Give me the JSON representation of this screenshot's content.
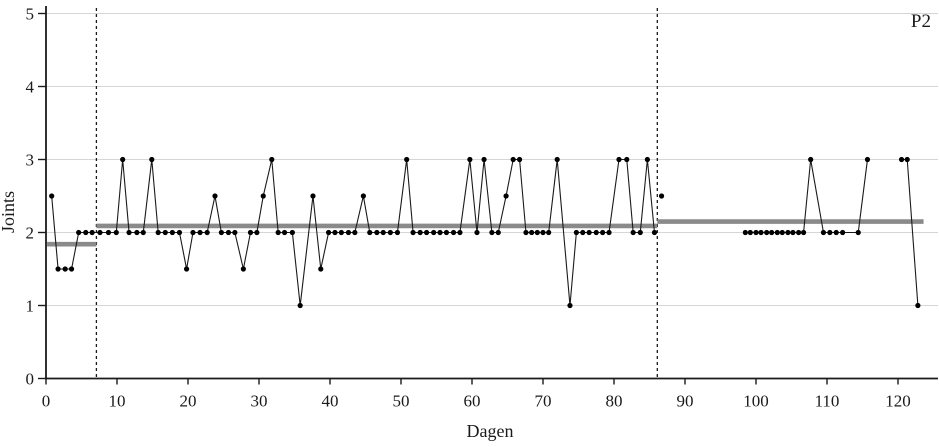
{
  "chart_data": {
    "type": "line",
    "annotation": "P2",
    "xlabel": "Dagen",
    "ylabel": "Joints",
    "xlim": [
      0,
      125.7
    ],
    "ylim": [
      0,
      5
    ],
    "xticks": [
      0,
      10,
      20,
      30,
      40,
      50,
      60,
      70,
      80,
      90,
      100,
      110,
      120
    ],
    "yticks": [
      0,
      1,
      2,
      3,
      4,
      5
    ],
    "grid": "horizontal",
    "phase_lines_x": [
      7.1,
      86.1
    ],
    "mean_segments": [
      {
        "x1": 0.15,
        "x2": 7.1,
        "value": 1.84
      },
      {
        "x1": 7.1,
        "x2": 86.1,
        "value": 2.09
      },
      {
        "x1": 86.1,
        "x2": 123.6,
        "value": 2.15
      }
    ],
    "series": [
      {
        "points": [
          [
            0.8,
            2.5
          ],
          [
            1.7,
            1.5
          ],
          [
            2.7,
            1.5
          ],
          [
            3.6,
            1.5
          ],
          [
            4.6,
            2
          ],
          [
            5.6,
            2
          ],
          [
            6.5,
            2
          ],
          [
            7.6,
            2
          ],
          [
            8.8,
            2
          ],
          [
            9.9,
            2
          ],
          [
            10.8,
            3
          ],
          [
            11.7,
            2
          ],
          [
            12.8,
            2
          ],
          [
            13.7,
            2
          ],
          [
            14.9,
            3
          ],
          [
            15.8,
            2
          ],
          [
            16.8,
            2
          ],
          [
            17.8,
            2
          ],
          [
            18.8,
            2
          ],
          [
            19.8,
            1.5
          ],
          [
            20.7,
            2
          ],
          [
            21.7,
            2
          ],
          [
            22.7,
            2
          ],
          [
            23.8,
            2.5
          ],
          [
            24.7,
            2
          ],
          [
            25.7,
            2
          ],
          [
            26.6,
            2
          ],
          [
            27.8,
            1.5
          ],
          [
            28.8,
            2
          ],
          [
            29.7,
            2
          ],
          [
            30.6,
            2.5
          ],
          [
            31.8,
            3
          ],
          [
            32.7,
            2
          ],
          [
            33.6,
            2
          ],
          [
            34.7,
            2
          ],
          [
            35.8,
            1
          ],
          [
            37.6,
            2.5
          ],
          [
            38.7,
            1.5
          ],
          [
            39.8,
            2
          ],
          [
            40.7,
            2
          ],
          [
            41.6,
            2
          ],
          [
            42.6,
            2
          ],
          [
            43.5,
            2
          ],
          [
            44.7,
            2.5
          ],
          [
            45.6,
            2
          ],
          [
            46.6,
            2
          ],
          [
            47.5,
            2
          ],
          [
            48.5,
            2
          ],
          [
            49.5,
            2
          ],
          [
            50.8,
            3
          ],
          [
            51.7,
            2
          ],
          [
            52.7,
            2
          ],
          [
            53.6,
            2
          ],
          [
            54.6,
            2
          ],
          [
            55.5,
            2
          ],
          [
            56.4,
            2
          ],
          [
            57.4,
            2
          ],
          [
            58.3,
            2
          ],
          [
            59.7,
            3
          ],
          [
            60.7,
            2
          ],
          [
            61.7,
            3
          ],
          [
            62.8,
            2
          ],
          [
            63.7,
            2
          ],
          [
            64.8,
            2.5
          ],
          [
            65.8,
            3
          ],
          [
            66.7,
            3
          ],
          [
            67.6,
            2
          ],
          [
            68.4,
            2
          ],
          [
            69.2,
            2
          ],
          [
            70.0,
            2
          ],
          [
            70.8,
            2
          ],
          [
            72.0,
            3
          ],
          [
            73.8,
            1
          ],
          [
            74.7,
            2
          ],
          [
            75.6,
            2
          ],
          [
            76.5,
            2
          ],
          [
            77.5,
            2
          ],
          [
            78.4,
            2
          ],
          [
            79.3,
            2
          ],
          [
            80.7,
            3
          ],
          [
            81.8,
            3
          ],
          [
            82.7,
            2
          ],
          [
            83.7,
            2
          ],
          [
            84.7,
            3
          ],
          [
            85.7,
            2
          ]
        ]
      },
      {
        "points": [
          [
            86.7,
            2.5
          ]
        ]
      },
      {
        "points": [
          [
            98.5,
            2
          ],
          [
            99.2,
            2
          ],
          [
            100,
            2
          ],
          [
            100.7,
            2
          ],
          [
            101.5,
            2
          ],
          [
            102.2,
            2
          ],
          [
            103,
            2
          ],
          [
            103.7,
            2
          ],
          [
            104.5,
            2
          ],
          [
            105.2,
            2
          ],
          [
            106,
            2
          ],
          [
            106.7,
            2
          ],
          [
            107.7,
            3
          ],
          [
            109.5,
            2
          ],
          [
            110.4,
            2
          ],
          [
            111.3,
            2
          ],
          [
            112.2,
            2
          ],
          [
            114.4,
            2
          ],
          [
            115.7,
            3
          ]
        ]
      },
      {
        "points": [
          [
            120.5,
            3
          ],
          [
            121.3,
            3
          ],
          [
            122.8,
            1
          ]
        ]
      }
    ],
    "colors": {
      "line": "#1a1a1a",
      "dot": "#000000",
      "mean_line": "#8a8a8a",
      "gridline": "#d6d6d6",
      "axis": "#1a1a1a",
      "background": "#ffffff"
    }
  }
}
